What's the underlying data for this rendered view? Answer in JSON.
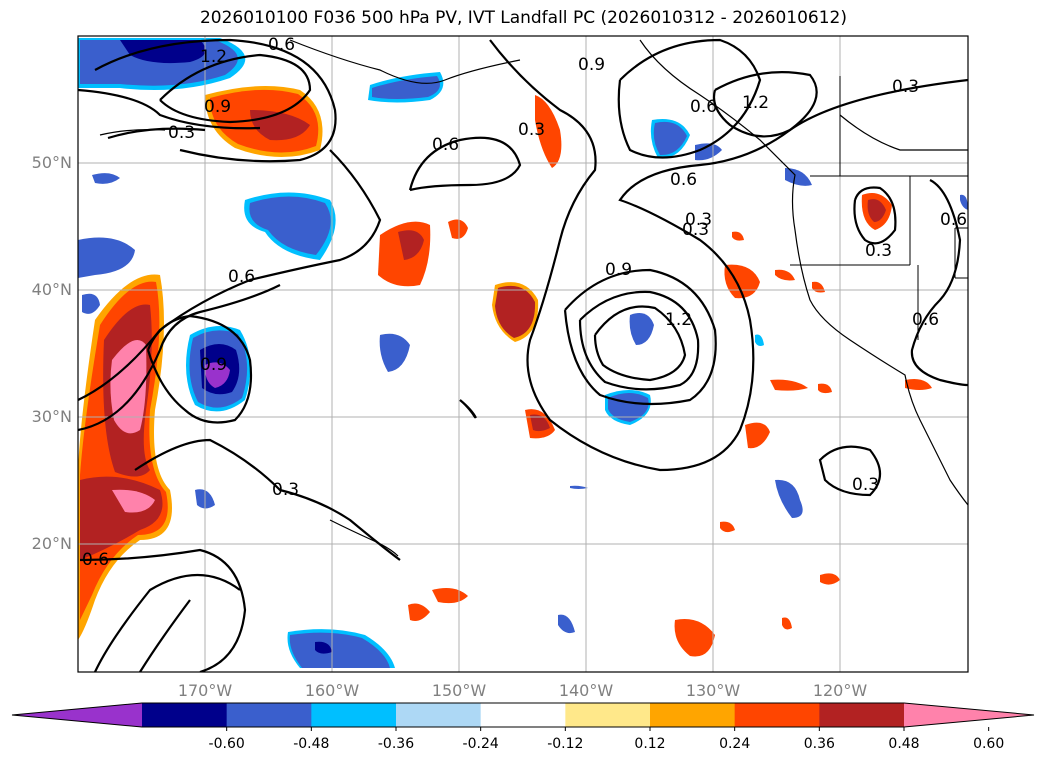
{
  "title": "2026010100 F036 500 hPa PV, IVT Landfall PC (2026010312 - 2026010612)",
  "lat_labels": [
    "50°N",
    "40°N",
    "30°N",
    "20°N"
  ],
  "lon_labels": [
    "170°W",
    "160°W",
    "150°W",
    "140°W",
    "130°W",
    "120°W"
  ],
  "contour_labels": [
    "1.2",
    "0.6",
    "0.9",
    "0.3",
    "0.6",
    "0.3",
    "0.9",
    "0.6",
    "0.3",
    "1.2",
    "0.3",
    "0.6",
    "0.3",
    "0.6",
    "0.9",
    "1.2",
    "0.6",
    "0.9",
    "0.3",
    "0.3",
    "0.6",
    "0.6",
    "0.3"
  ],
  "colorbar": {
    "ticks": [
      "-0.60",
      "-0.48",
      "-0.36",
      "-0.24",
      "-0.12",
      "0.12",
      "0.24",
      "0.36",
      "0.48",
      "0.60"
    ],
    "colors": [
      "#9932cc",
      "#00008b",
      "#3a5fcd",
      "#00bfff",
      "#add8f5",
      "#ffffff",
      "#ffe88a",
      "#ffa500",
      "#ff4500",
      "#b22222",
      "#ff82ab"
    ]
  }
}
